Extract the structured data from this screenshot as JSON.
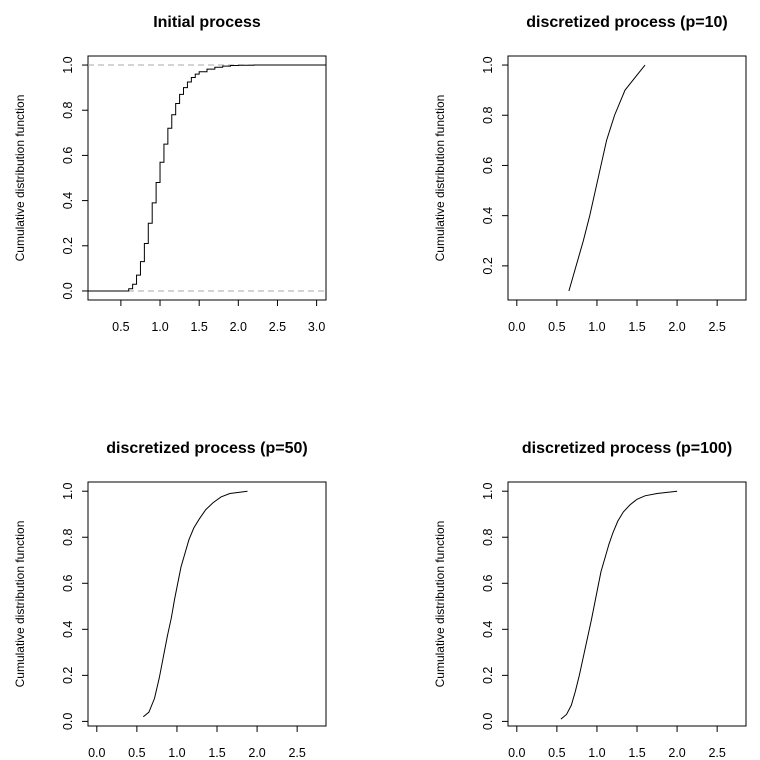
{
  "chart_data": [
    {
      "type": "line",
      "title": "Initial process",
      "xlabel": "",
      "ylabel": "Cumulative distribution function",
      "xlim": [
        0.08,
        3.12
      ],
      "ylim": [
        -0.04,
        1.04
      ],
      "xticks": [
        0.5,
        1.0,
        1.5,
        2.0,
        2.5,
        3.0
      ],
      "yticks": [
        0.0,
        0.2,
        0.4,
        0.6,
        0.8,
        1.0
      ],
      "xtick_labels": [
        "0.5",
        "1.0",
        "1.5",
        "2.0",
        "2.5",
        "3.0"
      ],
      "ytick_labels": [
        "0.0",
        "0.2",
        "0.4",
        "0.6",
        "0.8",
        "1.0"
      ],
      "reference_lines": [
        0,
        1
      ],
      "step": true,
      "series": [
        {
          "x": [
            0.08,
            0.55,
            0.6,
            0.65,
            0.7,
            0.75,
            0.8,
            0.85,
            0.9,
            0.95,
            1.0,
            1.05,
            1.1,
            1.15,
            1.2,
            1.25,
            1.3,
            1.35,
            1.4,
            1.45,
            1.5,
            1.6,
            1.7,
            1.8,
            1.9,
            2.0,
            2.2,
            2.5,
            3.12
          ],
          "y": [
            0.0,
            0.0,
            0.01,
            0.03,
            0.07,
            0.13,
            0.21,
            0.3,
            0.39,
            0.48,
            0.57,
            0.65,
            0.72,
            0.78,
            0.83,
            0.87,
            0.9,
            0.925,
            0.945,
            0.96,
            0.97,
            0.982,
            0.99,
            0.995,
            0.998,
            0.999,
            1.0,
            1.0,
            1.0
          ]
        }
      ]
    },
    {
      "type": "line",
      "title": "discretized process (p=10)",
      "xlabel": "",
      "ylabel": "Cumulative distribution function",
      "xlim": [
        -0.11,
        2.86
      ],
      "ylim": [
        0.064,
        1.036
      ],
      "xticks": [
        0.0,
        0.5,
        1.0,
        1.5,
        2.0,
        2.5
      ],
      "yticks": [
        0.2,
        0.4,
        0.6,
        0.8,
        1.0
      ],
      "xtick_labels": [
        "0.0",
        "0.5",
        "1.0",
        "1.5",
        "2.0",
        "2.5"
      ],
      "ytick_labels": [
        "0.2",
        "0.4",
        "0.6",
        "0.8",
        "1.0"
      ],
      "reference_lines": [],
      "step": false,
      "series": [
        {
          "x": [
            0.65,
            0.74,
            0.83,
            0.91,
            0.98,
            1.05,
            1.12,
            1.22,
            1.35,
            1.6
          ],
          "y": [
            0.1,
            0.2,
            0.3,
            0.4,
            0.5,
            0.6,
            0.7,
            0.8,
            0.9,
            1.0
          ]
        }
      ]
    },
    {
      "type": "line",
      "title": "discretized process (p=50)",
      "xlabel": "",
      "ylabel": "Cumulative distribution function",
      "xlim": [
        -0.11,
        2.86
      ],
      "ylim": [
        -0.02,
        1.04
      ],
      "xticks": [
        0.0,
        0.5,
        1.0,
        1.5,
        2.0,
        2.5
      ],
      "yticks": [
        0.0,
        0.2,
        0.4,
        0.6,
        0.8,
        1.0
      ],
      "xtick_labels": [
        "0.0",
        "0.5",
        "1.0",
        "1.5",
        "2.0",
        "2.5"
      ],
      "ytick_labels": [
        "0.0",
        "0.2",
        "0.4",
        "0.6",
        "0.8",
        "1.0"
      ],
      "reference_lines": [],
      "step": false,
      "series": [
        {
          "x": [
            0.58,
            0.65,
            0.72,
            0.78,
            0.83,
            0.88,
            0.93,
            0.97,
            1.01,
            1.05,
            1.1,
            1.15,
            1.21,
            1.28,
            1.36,
            1.45,
            1.55,
            1.66,
            1.88
          ],
          "y": [
            0.02,
            0.04,
            0.1,
            0.19,
            0.28,
            0.37,
            0.45,
            0.53,
            0.6,
            0.67,
            0.73,
            0.79,
            0.84,
            0.88,
            0.92,
            0.95,
            0.975,
            0.99,
            1.0
          ]
        }
      ]
    },
    {
      "type": "line",
      "title": "discretized process (p=100)",
      "xlabel": "",
      "ylabel": "Cumulative distribution function",
      "xlim": [
        -0.11,
        2.86
      ],
      "ylim": [
        -0.02,
        1.04
      ],
      "xticks": [
        0.0,
        0.5,
        1.0,
        1.5,
        2.0,
        2.5
      ],
      "yticks": [
        0.0,
        0.2,
        0.4,
        0.6,
        0.8,
        1.0
      ],
      "xtick_labels": [
        "0.0",
        "0.5",
        "1.0",
        "1.5",
        "2.0",
        "2.5"
      ],
      "ytick_labels": [
        "0.0",
        "0.2",
        "0.4",
        "0.6",
        "0.8",
        "1.0"
      ],
      "reference_lines": [],
      "step": false,
      "series": [
        {
          "x": [
            0.55,
            0.62,
            0.68,
            0.73,
            0.78,
            0.83,
            0.88,
            0.93,
            0.97,
            1.01,
            1.05,
            1.1,
            1.15,
            1.2,
            1.26,
            1.33,
            1.41,
            1.5,
            1.6,
            1.75,
            2.0
          ],
          "y": [
            0.01,
            0.03,
            0.07,
            0.13,
            0.2,
            0.28,
            0.36,
            0.44,
            0.51,
            0.58,
            0.65,
            0.71,
            0.77,
            0.82,
            0.87,
            0.91,
            0.94,
            0.965,
            0.98,
            0.99,
            1.0
          ]
        }
      ]
    }
  ]
}
